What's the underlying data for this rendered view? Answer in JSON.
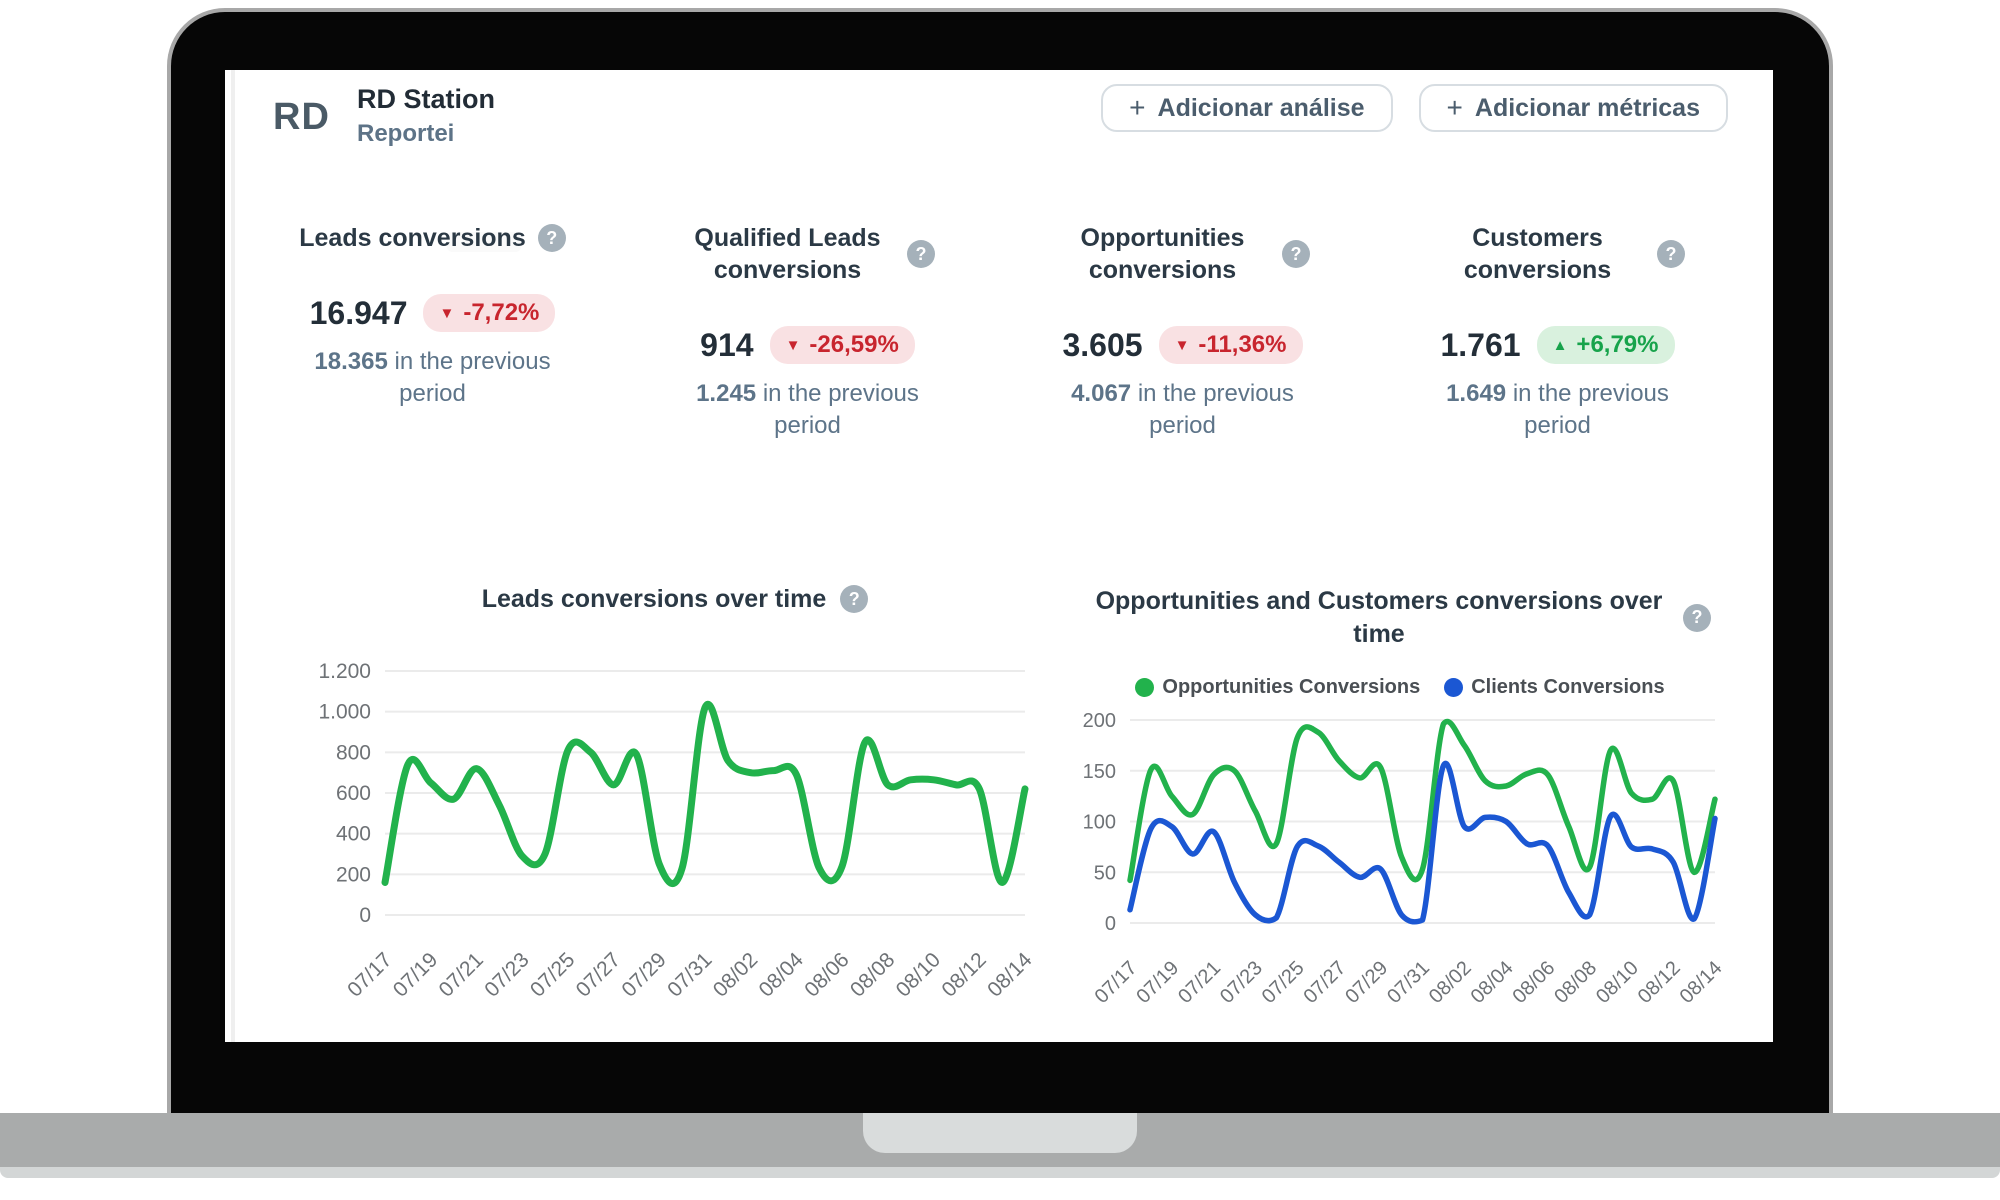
{
  "header": {
    "logo": "RD",
    "title": "RD Station",
    "subtitle": "Reportei",
    "actions": [
      {
        "plus": "+",
        "label": "Adicionar análise"
      },
      {
        "plus": "+",
        "label": "Adicionar métricas"
      }
    ],
    "help_glyph": "?"
  },
  "kpis": [
    {
      "title": "Leads conversions",
      "value": "16.947",
      "arrow": "▼",
      "delta": "-7,72%",
      "direction": "down",
      "previous": "18.365",
      "previous_suffix": "in the previous period"
    },
    {
      "title": "Qualified Leads conversions",
      "value": "914",
      "arrow": "▼",
      "delta": "-26,59%",
      "direction": "down",
      "previous": "1.245",
      "previous_suffix": "in the previous period"
    },
    {
      "title": "Opportunities conversions",
      "value": "3.605",
      "arrow": "▼",
      "delta": "-11,36%",
      "direction": "down",
      "previous": "4.067",
      "previous_suffix": "in the previous period"
    },
    {
      "title": "Customers conversions",
      "value": "1.761",
      "arrow": "▲",
      "delta": "+6,79%",
      "direction": "up",
      "previous": "1.649",
      "previous_suffix": "in the previous period"
    }
  ],
  "colors": {
    "green_line": "#22b24c",
    "blue_line": "#1b57d3",
    "badge_red_text": "#c8252e",
    "badge_red_bg": "#f9e1e3",
    "badge_green_text": "#17a34b",
    "badge_green_bg": "#d9f1de",
    "grid": "#ebebeb"
  },
  "chart_data": [
    {
      "type": "line",
      "title": "Leads conversions over time",
      "xlabel": "",
      "ylabel": "",
      "ylim": [
        0,
        1200
      ],
      "yticks": [
        0,
        200,
        400,
        600,
        800,
        1000,
        1200
      ],
      "ytick_labels": [
        "0",
        "200",
        "400",
        "600",
        "800",
        "1.000",
        "1.200"
      ],
      "grid": true,
      "legend": false,
      "x_tick_step": 2,
      "x": [
        "07/17",
        "07/18",
        "07/19",
        "07/20",
        "07/21",
        "07/22",
        "07/23",
        "07/24",
        "07/25",
        "07/26",
        "07/27",
        "07/28",
        "07/29",
        "07/30",
        "07/31",
        "08/01",
        "08/02",
        "08/03",
        "08/04",
        "08/05",
        "08/06",
        "08/07",
        "08/08",
        "08/09",
        "08/10",
        "08/11",
        "08/12",
        "08/13",
        "08/14"
      ],
      "series": [
        {
          "name": "Leads Conversions",
          "color": "#22b24c",
          "values": [
            160,
            740,
            650,
            570,
            720,
            540,
            290,
            300,
            810,
            800,
            640,
            790,
            250,
            230,
            1020,
            760,
            700,
            710,
            690,
            230,
            240,
            850,
            640,
            665,
            665,
            640,
            620,
            160,
            620
          ]
        }
      ]
    },
    {
      "type": "line",
      "title": "Opportunities and Customers conversions over time",
      "xlabel": "",
      "ylabel": "",
      "ylim": [
        0,
        200
      ],
      "yticks": [
        0,
        50,
        100,
        150,
        200
      ],
      "ytick_labels": [
        "0",
        "50",
        "100",
        "150",
        "200"
      ],
      "grid": true,
      "legend": true,
      "legend_position": "top",
      "x_tick_step": 2,
      "x": [
        "07/17",
        "07/18",
        "07/19",
        "07/20",
        "07/21",
        "07/22",
        "07/23",
        "07/24",
        "07/25",
        "07/26",
        "07/27",
        "07/28",
        "07/29",
        "07/30",
        "07/31",
        "08/01",
        "08/02",
        "08/03",
        "08/04",
        "08/05",
        "08/06",
        "08/07",
        "08/08",
        "08/09",
        "08/10",
        "08/11",
        "08/12",
        "08/13",
        "08/14"
      ],
      "series": [
        {
          "name": "Opportunities Conversions",
          "color": "#22b24c",
          "values": [
            42,
            151,
            125,
            107,
            146,
            150,
            110,
            78,
            182,
            188,
            160,
            143,
            153,
            65,
            53,
            196,
            175,
            140,
            135,
            147,
            146,
            95,
            55,
            170,
            128,
            122,
            140,
            50,
            122
          ]
        },
        {
          "name": "Clients Conversions",
          "color": "#1b57d3",
          "values": [
            13,
            93,
            95,
            68,
            90,
            40,
            8,
            5,
            75,
            76,
            60,
            45,
            53,
            8,
            3,
            155,
            95,
            104,
            100,
            78,
            76,
            30,
            8,
            105,
            75,
            73,
            60,
            4,
            103
          ]
        }
      ]
    }
  ]
}
